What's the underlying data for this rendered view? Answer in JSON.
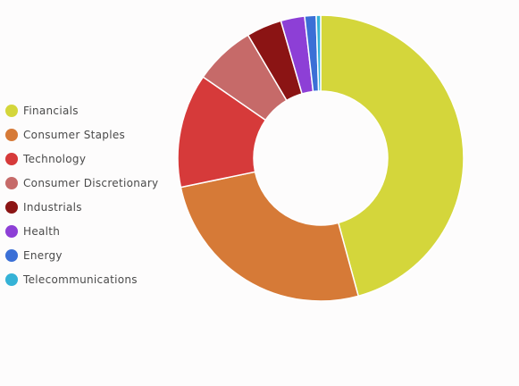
{
  "chart_data": {
    "type": "pie",
    "variant": "donut",
    "title": "",
    "legend_position": "left",
    "categories": [
      "Financials",
      "Consumer Staples",
      "Technology",
      "Consumer Discretionary",
      "Industrials",
      "Health",
      "Energy",
      "Telecommunications"
    ],
    "values": [
      45.8,
      26.0,
      12.9,
      6.9,
      4.0,
      2.7,
      1.3,
      0.5
    ],
    "colors": [
      "#d4d63b",
      "#d67a37",
      "#d63a3a",
      "#c66a69",
      "#8b1414",
      "#8d3fd6",
      "#3b6fd6",
      "#35b2d6"
    ]
  }
}
